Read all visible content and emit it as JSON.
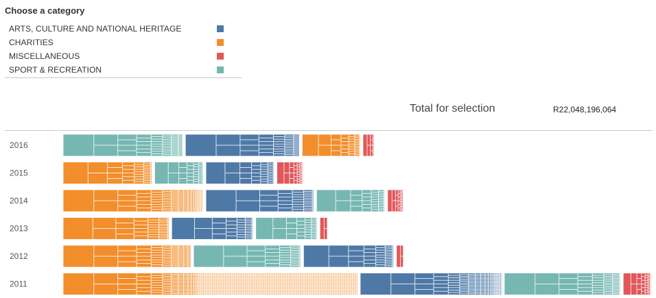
{
  "legend": {
    "title": "Choose a category",
    "items": [
      {
        "label": "ARTS, CULTURE AND NATIONAL HERITAGE",
        "color": "#4e79a7"
      },
      {
        "label": "CHARITIES",
        "color": "#f28e2b"
      },
      {
        "label": "MISCELLANEOUS",
        "color": "#e15759"
      },
      {
        "label": "SPORT & RECREATION",
        "color": "#76b7b2"
      }
    ]
  },
  "summary": {
    "label": "Total for selection",
    "value": "R22,048,196,064"
  },
  "chart_data": {
    "type": "treemap-bar",
    "years": [
      "2016",
      "2015",
      "2014",
      "2013",
      "2012",
      "2011"
    ],
    "colors": {
      "ARTS, CULTURE AND NATIONAL HERITAGE": "#4e79a7",
      "CHARITIES": "#f28e2b",
      "MISCELLANEOUS": "#e15759",
      "SPORT & RECREATION": "#76b7b2"
    },
    "rows": [
      {
        "year": "2016",
        "segments": [
          {
            "category": "SPORT & RECREATION",
            "value": 175
          },
          {
            "category": "ARTS, CULTURE AND NATIONAL HERITAGE",
            "value": 167
          },
          {
            "category": "CHARITIES",
            "value": 85
          },
          {
            "category": "MISCELLANEOUS",
            "value": 16
          }
        ]
      },
      {
        "year": "2015",
        "segments": [
          {
            "category": "CHARITIES",
            "value": 130
          },
          {
            "category": "SPORT & RECREATION",
            "value": 71
          },
          {
            "category": "ARTS, CULTURE AND NATIONAL HERITAGE",
            "value": 100
          },
          {
            "category": "MISCELLANEOUS",
            "value": 37
          }
        ]
      },
      {
        "year": "2014",
        "segments": [
          {
            "category": "CHARITIES",
            "value": 205
          },
          {
            "category": "ARTS, CULTURE AND NATIONAL HERITAGE",
            "value": 158
          },
          {
            "category": "SPORT & RECREATION",
            "value": 100
          },
          {
            "category": "MISCELLANEOUS",
            "value": 23
          }
        ]
      },
      {
        "year": "2013",
        "segments": [
          {
            "category": "CHARITIES",
            "value": 155
          },
          {
            "category": "ARTS, CULTURE AND NATIONAL HERITAGE",
            "value": 119
          },
          {
            "category": "SPORT & RECREATION",
            "value": 90
          },
          {
            "category": "MISCELLANEOUS",
            "value": 11
          }
        ]
      },
      {
        "year": "2012",
        "segments": [
          {
            "category": "CHARITIES",
            "value": 187
          },
          {
            "category": "SPORT & RECREATION",
            "value": 157
          },
          {
            "category": "ARTS, CULTURE AND NATIONAL HERITAGE",
            "value": 132
          },
          {
            "category": "MISCELLANEOUS",
            "value": 10
          }
        ]
      },
      {
        "year": "2011",
        "segments": [
          {
            "category": "CHARITIES",
            "value": 431
          },
          {
            "category": "ARTS, CULTURE AND NATIONAL HERITAGE",
            "value": 207
          },
          {
            "category": "SPORT & RECREATION",
            "value": 170
          },
          {
            "category": "MISCELLANEOUS",
            "value": 40
          }
        ]
      }
    ]
  }
}
